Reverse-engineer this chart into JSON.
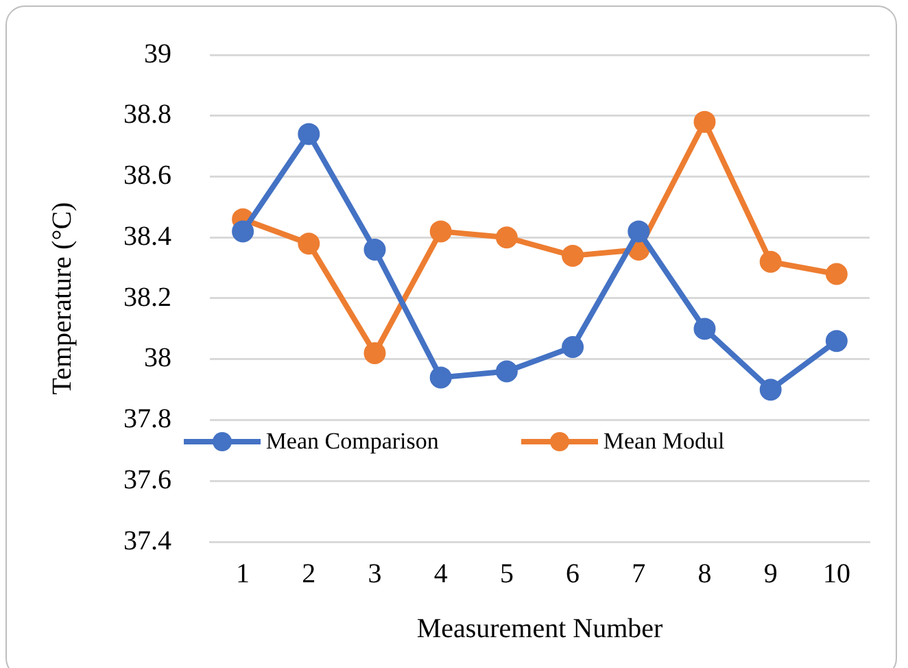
{
  "chart_data": {
    "type": "line",
    "xlabel": "Measurement Number",
    "ylabel": "Temperature (°C)",
    "categories": [
      "1",
      "2",
      "3",
      "4",
      "5",
      "6",
      "7",
      "8",
      "9",
      "10"
    ],
    "series": [
      {
        "name": "Mean Comparison",
        "color": "#4472c4",
        "values": [
          38.42,
          38.74,
          38.36,
          37.94,
          37.96,
          38.04,
          38.42,
          38.1,
          37.9,
          38.06
        ]
      },
      {
        "name": "Mean Modul",
        "color": "#ed7d31",
        "values": [
          38.46,
          38.38,
          38.02,
          38.42,
          38.4,
          38.34,
          38.36,
          38.78,
          38.32,
          38.28
        ]
      }
    ],
    "ylim": [
      37.4,
      39
    ],
    "yticks": [
      37.4,
      37.6,
      37.8,
      38,
      38.2,
      38.4,
      38.6,
      38.8,
      39
    ],
    "grid": "y",
    "legend": "bottom",
    "marker": "circle",
    "line_style": "solid"
  }
}
